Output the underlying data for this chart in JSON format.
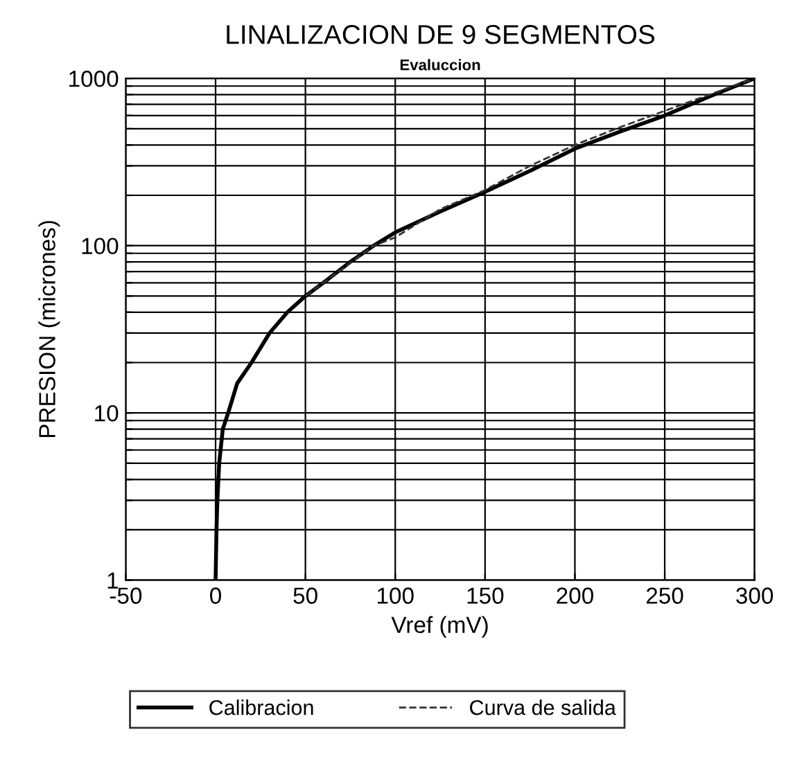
{
  "chart_data": {
    "type": "line",
    "title": "LINALIZACION DE 9 SEGMENTOS",
    "subtitle": "Evaluccion",
    "xlabel": "Vref (mV)",
    "ylabel": "PRESION (micrones)",
    "log": "y",
    "xlim": [
      -50,
      300
    ],
    "xticks": [
      -50,
      0,
      50,
      100,
      150,
      200,
      250,
      300
    ],
    "ylim": [
      1,
      1000
    ],
    "yticks": [
      1,
      {
        "value": 2,
        "label": null
      },
      {
        "value": 3,
        "label": null
      },
      {
        "value": 4,
        "label": null
      },
      {
        "value": 5,
        "label": null
      },
      {
        "value": 6,
        "label": null
      },
      {
        "value": 7,
        "label": null
      },
      {
        "value": 8,
        "label": null
      },
      {
        "value": 9,
        "label": null
      },
      10,
      {
        "value": 20,
        "label": null
      },
      {
        "value": 30,
        "label": null
      },
      {
        "value": 40,
        "label": null
      },
      {
        "value": 50,
        "label": null
      },
      {
        "value": 60,
        "label": null
      },
      {
        "value": 70,
        "label": null
      },
      {
        "value": 80,
        "label": null
      },
      {
        "value": 90,
        "label": null
      },
      100,
      {
        "value": 200,
        "label": null
      },
      {
        "value": 300,
        "label": null
      },
      {
        "value": 400,
        "label": null
      },
      {
        "value": 500,
        "label": null
      },
      {
        "value": 600,
        "label": null
      },
      {
        "value": 700,
        "label": null
      },
      {
        "value": 800,
        "label": null
      },
      {
        "value": 900,
        "label": null
      },
      1000
    ],
    "grid": true,
    "legend": "bottom",
    "marker": "none",
    "series": [
      {
        "name": "Calibracion",
        "color": "#000000",
        "line_style": "solid",
        "x": [
          0,
          0.5,
          1,
          2,
          4,
          7,
          12,
          20,
          30,
          40,
          50,
          60,
          75,
          88,
          100,
          125,
          150,
          175,
          200,
          225,
          250,
          275,
          300
        ],
        "values": [
          1,
          2,
          3,
          5,
          8,
          10,
          15,
          20,
          30,
          40,
          50,
          60,
          80,
          100,
          120,
          160,
          210,
          280,
          380,
          480,
          600,
          780,
          1000
        ]
      },
      {
        "name": "Curva de salida",
        "color": "#333333",
        "line_style": "dashed",
        "x": [
          50,
          88,
          100,
          125,
          150,
          175,
          200,
          225,
          250,
          275,
          300
        ],
        "values": [
          50,
          100,
          112,
          165,
          215,
          300,
          400,
          510,
          640,
          800,
          1000
        ]
      }
    ]
  }
}
